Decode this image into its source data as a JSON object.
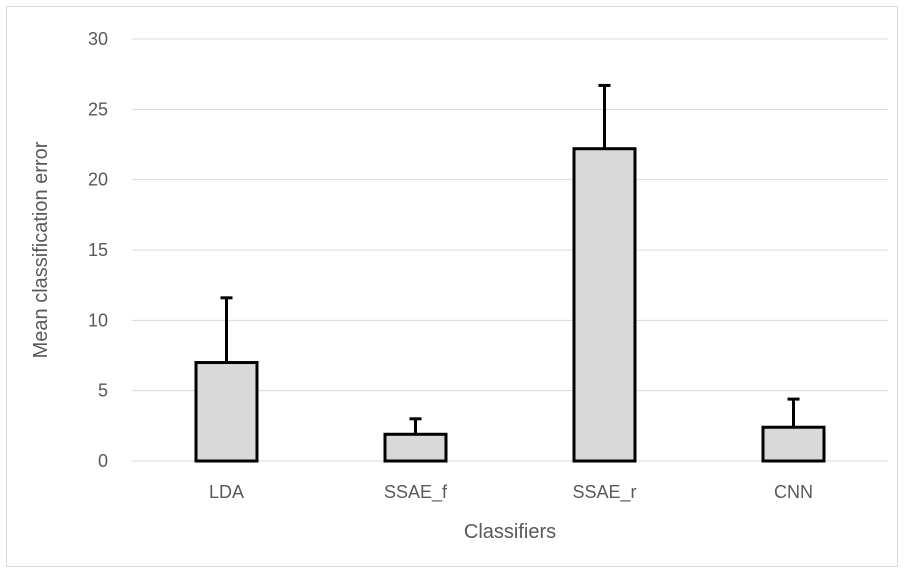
{
  "chart_data": {
    "type": "bar",
    "title": "",
    "xlabel": "Classifiers",
    "ylabel": "Mean classification error",
    "categories": [
      "LDA",
      "SSAE_f",
      "SSAE_r",
      "CNN"
    ],
    "values": [
      7.0,
      1.9,
      22.2,
      2.4
    ],
    "error_plus": [
      4.6,
      1.1,
      4.5,
      2.0
    ],
    "ylim": [
      0,
      30
    ],
    "yticks": [
      0,
      5,
      10,
      15,
      20,
      25,
      30
    ],
    "grid": true,
    "legend": "none",
    "colors": {
      "bar_fill": "#d9d9d9",
      "bar_stroke": "#000000",
      "gridline": "#d9d9d9",
      "axis_text": "#595959"
    }
  }
}
